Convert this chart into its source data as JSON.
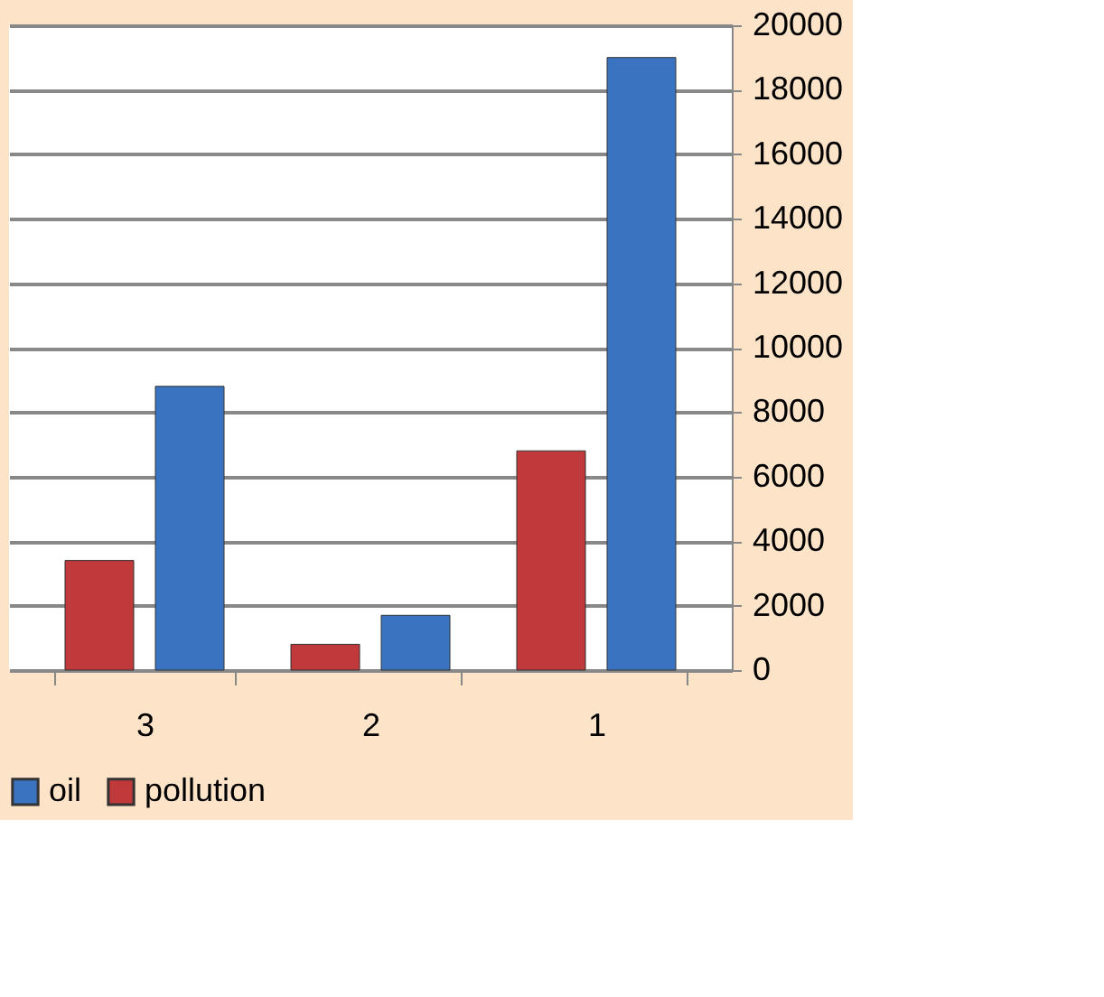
{
  "chart_data": {
    "type": "bar",
    "categories": [
      "3",
      "2",
      "1"
    ],
    "series": [
      {
        "name": "pollution",
        "color": "#c0393b",
        "values": [
          3400,
          800,
          6800
        ]
      },
      {
        "name": "oil",
        "color": "#3a74c0",
        "values": [
          8800,
          1700,
          19000
        ]
      }
    ],
    "ylim": [
      0,
      20000
    ],
    "yticks": [
      0,
      2000,
      4000,
      6000,
      8000,
      10000,
      12000,
      14000,
      16000,
      18000,
      20000
    ],
    "grid": "y",
    "legend": "bottom"
  }
}
